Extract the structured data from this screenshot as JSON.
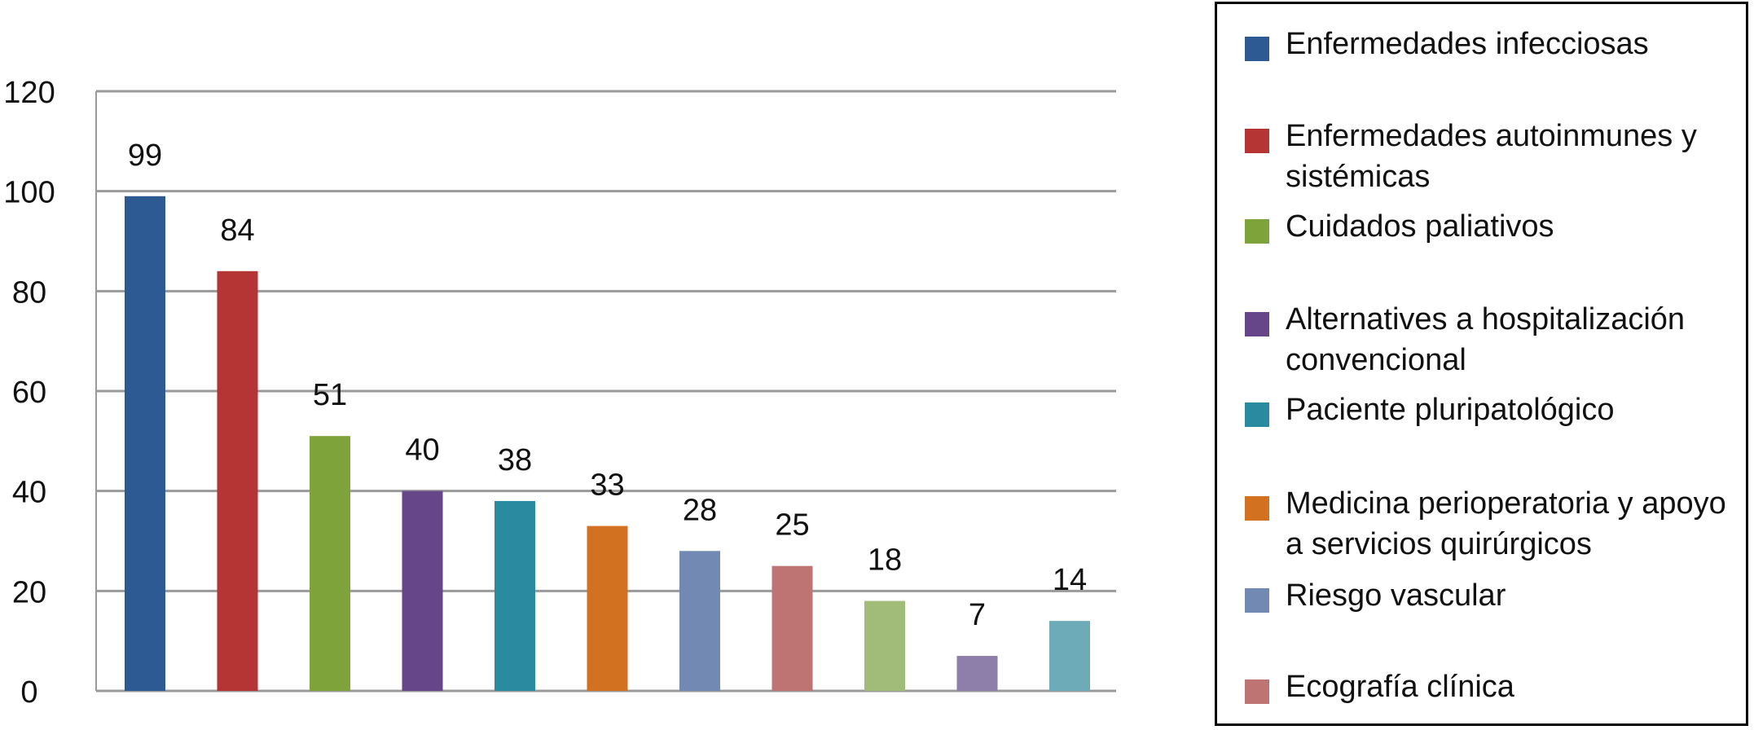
{
  "chart_data": {
    "type": "bar",
    "categories": [
      "Enfermedades infecciosas",
      "Enfermedades autoinmunes y sistémicas",
      "Cuidados paliativos",
      "Alternatives a hospitalización convencional",
      "Paciente pluripatológico",
      "Medicina perioperatoria y apoyo a servicios quirúrgicos",
      "Riesgo vascular",
      "Ecografía clínica",
      "",
      "",
      ""
    ],
    "values": [
      99,
      84,
      51,
      40,
      38,
      33,
      28,
      25,
      18,
      7,
      14
    ],
    "data_labels": [
      "99",
      "84",
      "51",
      "40",
      "38",
      "33",
      "28",
      "25",
      "18",
      "7",
      "14"
    ],
    "colors": [
      "#2E5A93",
      "#B53434",
      "#7EA33A",
      "#664689",
      "#2A8BA0",
      "#D2711F",
      "#7289B4",
      "#BD7473",
      "#A0BC78",
      "#8E7EAA",
      "#6CABB7"
    ],
    "ylim": [
      0,
      120
    ],
    "y_ticks": [
      "0",
      "20",
      "40",
      "60",
      "80",
      "100",
      "120"
    ],
    "grid": true,
    "legend_placement": "right",
    "title": "",
    "xlabel": "",
    "ylabel": ""
  },
  "legend": {
    "items": [
      {
        "label": "Enfermedades infecciosas",
        "color": "#2E5A93"
      },
      {
        "label": "Enfermedades autoinmunes y sistémicas",
        "color": "#B53434"
      },
      {
        "label": "Cuidados paliativos",
        "color": "#7EA33A"
      },
      {
        "label": "Alternatives a hospitalización convencional",
        "color": "#664689"
      },
      {
        "label": "Paciente pluripatológico",
        "color": "#2A8BA0"
      },
      {
        "label": "Medicina perioperatoria y apoyo a servicios quirúrgicos",
        "color": "#D2711F"
      },
      {
        "label": "Riesgo vascular",
        "color": "#7289B4"
      },
      {
        "label": "Ecografía clínica",
        "color": "#BD7473"
      }
    ]
  }
}
